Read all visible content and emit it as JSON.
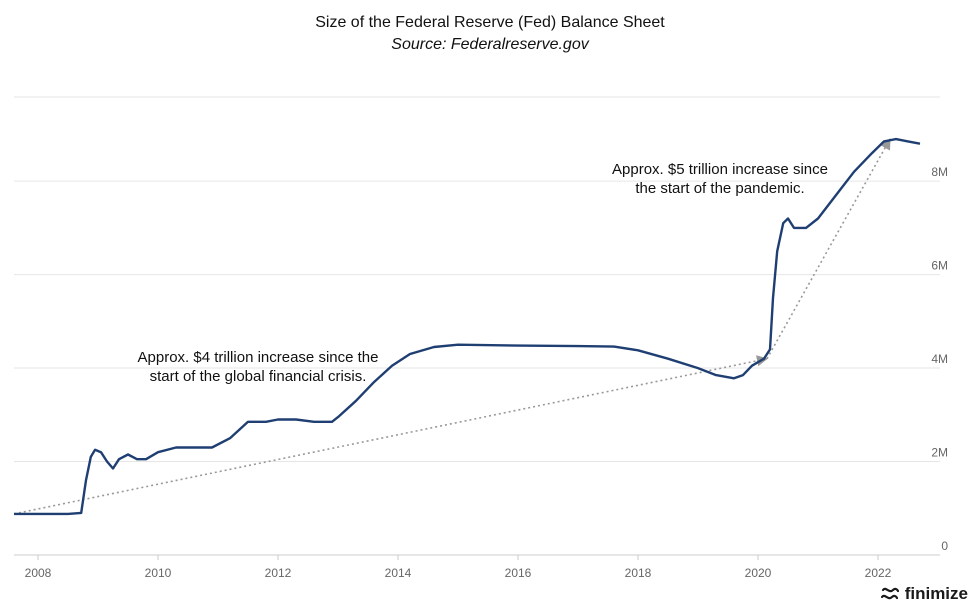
{
  "chart_data": {
    "type": "line",
    "title": "Size of the Federal Reserve (Fed) Balance Sheet",
    "subtitle": "Source: Federalreserve.gov",
    "xlabel": "",
    "ylabel": "",
    "xlim": [
      2007.6,
      2022.7
    ],
    "ylim": [
      0,
      9.8
    ],
    "x_ticks": [
      2008,
      2010,
      2012,
      2014,
      2016,
      2018,
      2020,
      2022
    ],
    "x_tick_labels": [
      "2008",
      "2010",
      "2012",
      "2014",
      "2016",
      "2018",
      "2020",
      "2022"
    ],
    "y_ticks": [
      0,
      2,
      4,
      6,
      8
    ],
    "y_tick_labels": [
      "0",
      "2M",
      "4M",
      "6M",
      "8M"
    ],
    "grid": "horizontal",
    "series": [
      {
        "color": "#1f3f73",
        "points": [
          [
            2007.6,
            0.88
          ],
          [
            2008.0,
            0.88
          ],
          [
            2008.5,
            0.88
          ],
          [
            2008.72,
            0.9
          ],
          [
            2008.8,
            1.6
          ],
          [
            2008.88,
            2.1
          ],
          [
            2008.95,
            2.25
          ],
          [
            2009.05,
            2.2
          ],
          [
            2009.15,
            2.0
          ],
          [
            2009.25,
            1.85
          ],
          [
            2009.35,
            2.05
          ],
          [
            2009.5,
            2.15
          ],
          [
            2009.65,
            2.05
          ],
          [
            2009.8,
            2.05
          ],
          [
            2010.0,
            2.2
          ],
          [
            2010.3,
            2.3
          ],
          [
            2010.6,
            2.3
          ],
          [
            2010.9,
            2.3
          ],
          [
            2011.2,
            2.5
          ],
          [
            2011.5,
            2.85
          ],
          [
            2011.8,
            2.85
          ],
          [
            2012.0,
            2.9
          ],
          [
            2012.3,
            2.9
          ],
          [
            2012.6,
            2.85
          ],
          [
            2012.9,
            2.85
          ],
          [
            2013.0,
            2.95
          ],
          [
            2013.3,
            3.3
          ],
          [
            2013.6,
            3.7
          ],
          [
            2013.9,
            4.05
          ],
          [
            2014.2,
            4.3
          ],
          [
            2014.6,
            4.45
          ],
          [
            2015.0,
            4.5
          ],
          [
            2016.0,
            4.48
          ],
          [
            2017.0,
            4.47
          ],
          [
            2017.6,
            4.46
          ],
          [
            2018.0,
            4.38
          ],
          [
            2018.5,
            4.2
          ],
          [
            2019.0,
            4.0
          ],
          [
            2019.3,
            3.85
          ],
          [
            2019.6,
            3.78
          ],
          [
            2019.75,
            3.85
          ],
          [
            2019.9,
            4.05
          ],
          [
            2020.1,
            4.2
          ],
          [
            2020.2,
            4.4
          ],
          [
            2020.25,
            5.5
          ],
          [
            2020.32,
            6.5
          ],
          [
            2020.42,
            7.1
          ],
          [
            2020.5,
            7.2
          ],
          [
            2020.6,
            7.0
          ],
          [
            2020.8,
            7.0
          ],
          [
            2021.0,
            7.2
          ],
          [
            2021.3,
            7.7
          ],
          [
            2021.6,
            8.2
          ],
          [
            2021.9,
            8.6
          ],
          [
            2022.1,
            8.85
          ],
          [
            2022.3,
            8.9
          ],
          [
            2022.5,
            8.85
          ],
          [
            2022.7,
            8.8
          ]
        ]
      }
    ],
    "annotations": [
      {
        "text_lines": [
          "Approx. $4 trillion increase since the",
          "start of the global financial crisis."
        ],
        "arrow_from": [
          2007.6,
          0.88
        ],
        "arrow_to": [
          2020.15,
          4.2
        ]
      },
      {
        "text_lines": [
          "Approx. $5 trillion increase since",
          "the start of the pandemic."
        ],
        "arrow_from": [
          2020.15,
          4.2
        ],
        "arrow_to": [
          2022.2,
          8.9
        ]
      }
    ]
  },
  "brand": {
    "name": "finimize",
    "icon": "finimize-logo-icon"
  }
}
